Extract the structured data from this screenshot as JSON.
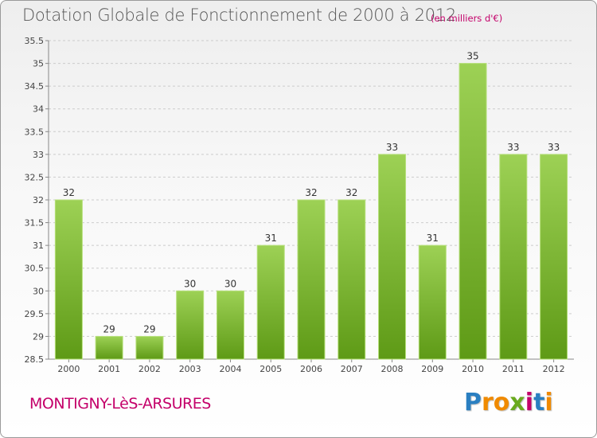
{
  "title": "Dotation Globale de Fonctionnement de 2000 à 2012",
  "unit_note": "(en milliers d'€)",
  "commune": "MONTIGNY-LèS-ARSURES",
  "brand": {
    "letters": [
      "P",
      "r",
      "o",
      "x",
      "i",
      "t",
      "i"
    ],
    "colors": [
      "#2a7fc1",
      "#f08a00",
      "#f08a00",
      "#6aaa1e",
      "#c4006a",
      "#2a7fc1",
      "#f08a00"
    ]
  },
  "colors": {
    "bar_top": "#9dd155",
    "bar_bottom": "#5e9a16",
    "accent": "#c4006a",
    "axis": "#888888",
    "grid": "#cccccc"
  },
  "chart_data": {
    "type": "bar",
    "title": "Dotation Globale de Fonctionnement de 2000 à 2012",
    "categories": [
      "2000",
      "2001",
      "2002",
      "2003",
      "2004",
      "2005",
      "2006",
      "2007",
      "2008",
      "2009",
      "2010",
      "2011",
      "2012"
    ],
    "values": [
      32,
      29,
      29,
      30,
      30,
      31,
      32,
      32,
      33,
      31,
      35,
      33,
      33
    ],
    "labels": [
      "32",
      "29",
      "29",
      "30",
      "30",
      "31",
      "32",
      "32",
      "33",
      "31",
      "35",
      "33",
      "33"
    ],
    "xlabel": "",
    "ylabel": "",
    "ylim": [
      28.5,
      35.5
    ],
    "yticks": [
      "28.5",
      "29",
      "29.5",
      "30",
      "30.5",
      "31",
      "31.5",
      "32",
      "32.5",
      "33",
      "33.5",
      "34",
      "34.5",
      "35",
      "35.5"
    ],
    "grid": "horizontal dashed"
  }
}
